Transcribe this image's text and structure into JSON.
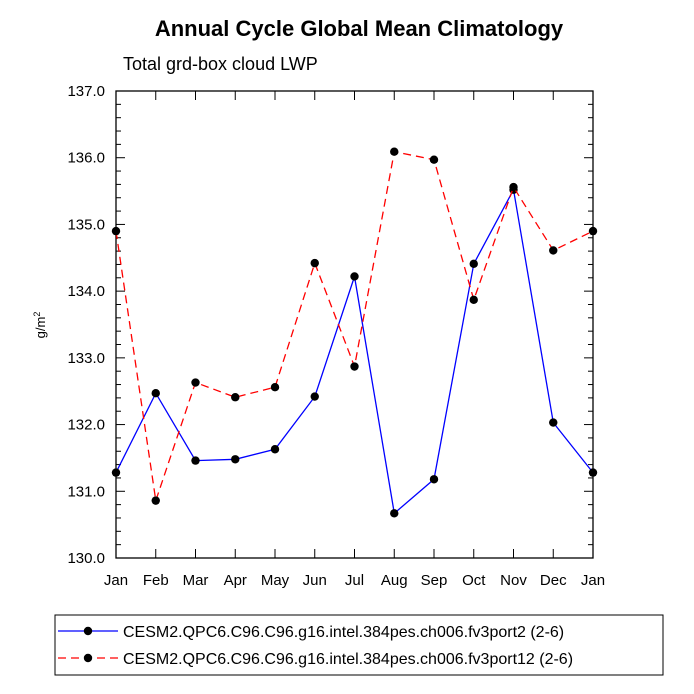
{
  "chart_data": {
    "type": "line",
    "title": "Annual Cycle Global Mean Climatology",
    "subtitle": "Total grd-box cloud LWP",
    "ylabel": "g/m",
    "ylabel_sup": "2",
    "xlabel": "",
    "categories": [
      "Jan",
      "Feb",
      "Mar",
      "Apr",
      "May",
      "Jun",
      "Jul",
      "Aug",
      "Sep",
      "Oct",
      "Nov",
      "Dec",
      "Jan"
    ],
    "ylim": [
      130.0,
      137.0
    ],
    "yticks": [
      "130.0",
      "131.0",
      "132.0",
      "133.0",
      "134.0",
      "135.0",
      "136.0",
      "137.0"
    ],
    "series": [
      {
        "name": "CESM2.QPC6.C96.C96.g16.intel.384pes.ch006.fv3port2 (2-6)",
        "color": "#0000ff",
        "dash": "solid",
        "values": [
          131.28,
          132.47,
          131.46,
          131.48,
          131.63,
          132.42,
          134.22,
          130.67,
          131.18,
          134.41,
          135.52,
          132.03,
          131.28
        ]
      },
      {
        "name": "CESM2.QPC6.C96.C96.g16.intel.384pes.ch006.fv3port12 (2-6)",
        "color": "#ff0000",
        "dash": "dashed",
        "values": [
          134.9,
          130.86,
          132.63,
          132.41,
          132.56,
          134.42,
          132.87,
          136.09,
          135.97,
          133.87,
          135.56,
          134.61,
          134.9
        ]
      }
    ]
  }
}
